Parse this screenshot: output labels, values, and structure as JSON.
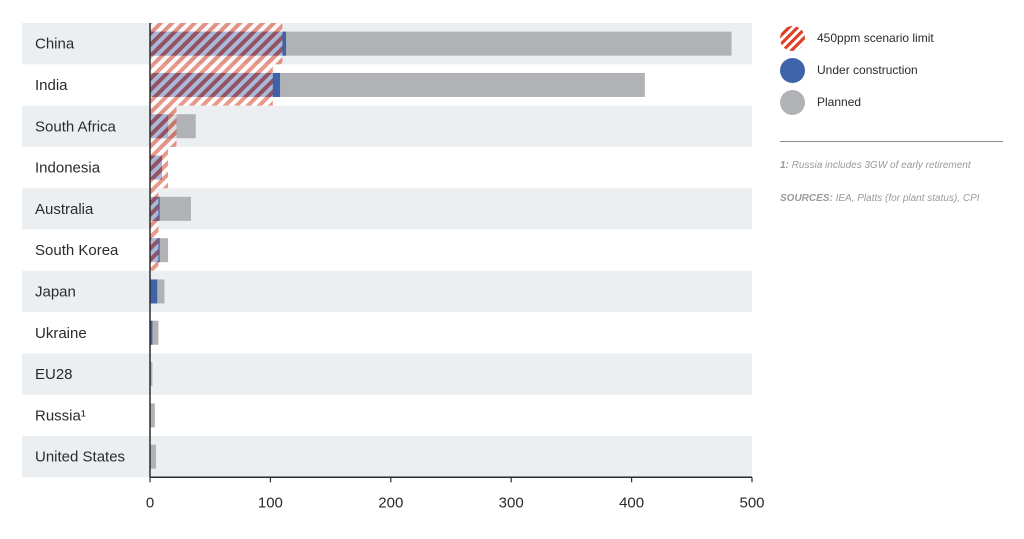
{
  "chart_data": {
    "type": "bar",
    "orientation": "horizontal",
    "categories": [
      "China",
      "India",
      "South Africa",
      "Indonesia",
      "Australia",
      "South Korea",
      "Japan",
      "Ukraine",
      "EU28",
      "Russia¹",
      "United States"
    ],
    "series": [
      {
        "name": "Planned",
        "values": [
          483,
          411,
          38,
          8,
          34,
          15,
          12,
          7,
          2,
          4,
          5
        ]
      },
      {
        "name": "Under construction",
        "values": [
          113,
          108,
          15,
          10,
          8,
          8,
          6,
          2,
          0,
          0,
          0
        ]
      },
      {
        "name": "450ppm scenario limit",
        "values": [
          110,
          102,
          22,
          15,
          7,
          7,
          0,
          0,
          0,
          0,
          0
        ]
      }
    ],
    "xlim": [
      0,
      500
    ],
    "xticks": [
      0,
      100,
      200,
      300,
      400,
      500
    ],
    "grid": false,
    "legend_position": "right",
    "colors": {
      "planned": "#b0b2b6",
      "under_construction": "#3f63a8",
      "limit_hatch": "#d9442b",
      "row_band": "#eceff2"
    }
  },
  "legend": {
    "items": [
      {
        "label": "450ppm scenario limit"
      },
      {
        "label": "Under construction"
      },
      {
        "label": "Planned"
      }
    ]
  },
  "notes": {
    "footnote_key": "1:",
    "footnote_text": "Russia includes 3GW of early retirement",
    "sources_key": "SOURCES:",
    "sources_text": "IEA, Platts (for plant status), CPI"
  }
}
